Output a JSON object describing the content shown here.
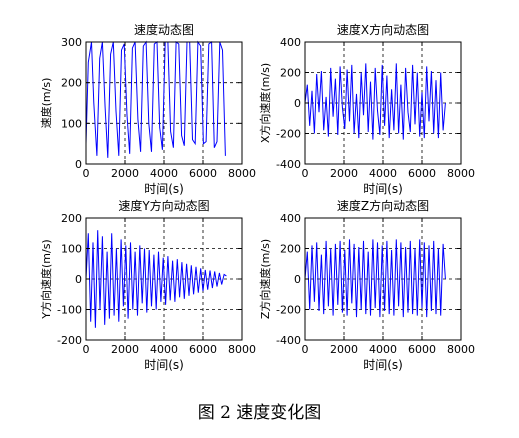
{
  "caption": "图 2  速度变化图",
  "colors": {
    "line": "#0000ff",
    "axis": "#000000",
    "grid": "#000000",
    "background": "#ffffff"
  },
  "chart_data": [
    {
      "type": "line",
      "title": "速度动态图",
      "xlabel": "时间(s)",
      "ylabel": "速度(m/s)",
      "xlim": [
        0,
        8000
      ],
      "ylim": [
        0,
        300
      ],
      "xticks": [
        0,
        2000,
        4000,
        6000,
        8000
      ],
      "yticks": [
        0,
        100,
        200,
        300
      ],
      "grid": true,
      "series": [
        {
          "x": [
            0,
            120,
            280,
            400,
            560,
            700,
            840,
            980,
            1120,
            1260,
            1400,
            1540,
            1680,
            1820,
            1960,
            2100,
            2240,
            2380,
            2520,
            2660,
            2800,
            2940,
            3080,
            3220,
            3360,
            3500,
            3640,
            3780,
            3920,
            4060,
            4200,
            4340,
            4480,
            4620,
            4760,
            4900,
            5040,
            5180,
            5320,
            5460,
            5600,
            5740,
            5880,
            6020,
            6160,
            6300,
            6440,
            6580,
            6720,
            6860,
            7000,
            7150
          ],
          "y": [
            50,
            250,
            300,
            150,
            20,
            260,
            300,
            140,
            15,
            270,
            300,
            130,
            20,
            280,
            295,
            120,
            25,
            285,
            300,
            110,
            30,
            290,
            300,
            100,
            30,
            295,
            300,
            90,
            35,
            300,
            300,
            80,
            40,
            300,
            295,
            70,
            45,
            300,
            300,
            60,
            50,
            300,
            290,
            50,
            55,
            295,
            300,
            40,
            55,
            300,
            280,
            20
          ]
        }
      ]
    },
    {
      "type": "line",
      "title": "速度X方向动态图",
      "xlabel": "时间(s)",
      "ylabel": "X方向速度(m/s)",
      "xlim": [
        0,
        8000
      ],
      "ylim": [
        -400,
        400
      ],
      "xticks": [
        0,
        2000,
        4000,
        6000,
        8000
      ],
      "yticks": [
        -400,
        -200,
        0,
        200,
        400
      ],
      "grid": true,
      "series": [
        {
          "x": [
            0,
            120,
            240,
            360,
            480,
            600,
            720,
            840,
            960,
            1080,
            1200,
            1320,
            1440,
            1560,
            1680,
            1800,
            1920,
            2040,
            2160,
            2280,
            2400,
            2520,
            2640,
            2760,
            2880,
            3000,
            3120,
            3240,
            3360,
            3480,
            3600,
            3720,
            3840,
            3960,
            4080,
            4200,
            4320,
            4440,
            4560,
            4680,
            4800,
            4920,
            5040,
            5160,
            5280,
            5400,
            5520,
            5640,
            5760,
            5880,
            6000,
            6120,
            6240,
            6360,
            6480,
            6600,
            6720,
            6840,
            6960,
            7080,
            7200
          ],
          "y": [
            0,
            120,
            -150,
            80,
            -200,
            190,
            -60,
            210,
            -180,
            40,
            -220,
            230,
            -90,
            160,
            -210,
            240,
            -30,
            -170,
            220,
            -120,
            250,
            -200,
            60,
            -230,
            200,
            -80,
            260,
            -190,
            140,
            -240,
            230,
            -50,
            -210,
            250,
            -150,
            180,
            -230,
            90,
            -180,
            260,
            -200,
            120,
            -240,
            230,
            -60,
            -190,
            250,
            -140,
            200,
            -220,
            70,
            -230,
            240,
            -120,
            210,
            -200,
            150,
            -230,
            200,
            -180,
            0
          ]
        }
      ]
    },
    {
      "type": "line",
      "title": "速度Y方向动态图",
      "xlabel": "时间(s)",
      "ylabel": "Y方向速度(m/s)",
      "xlim": [
        0,
        8000
      ],
      "ylim": [
        -200,
        200
      ],
      "xticks": [
        0,
        2000,
        4000,
        6000,
        8000
      ],
      "yticks": [
        -200,
        -100,
        0,
        100,
        200
      ],
      "grid": true,
      "series": [
        {
          "x": [
            0,
            120,
            240,
            360,
            480,
            600,
            720,
            840,
            960,
            1080,
            1200,
            1320,
            1440,
            1560,
            1680,
            1800,
            1920,
            2040,
            2160,
            2280,
            2400,
            2520,
            2640,
            2760,
            2880,
            3000,
            3120,
            3240,
            3360,
            3480,
            3600,
            3720,
            3840,
            3960,
            4080,
            4200,
            4320,
            4440,
            4560,
            4680,
            4800,
            4920,
            5040,
            5160,
            5280,
            5400,
            5520,
            5640,
            5760,
            5880,
            6000,
            6120,
            6240,
            6360,
            6480,
            6600,
            6720,
            6840,
            6960,
            7080,
            7200
          ],
          "y": [
            0,
            150,
            -140,
            120,
            -160,
            160,
            -100,
            140,
            -150,
            90,
            -130,
            150,
            -120,
            100,
            -140,
            130,
            -90,
            110,
            -130,
            120,
            -100,
            90,
            -120,
            110,
            -80,
            100,
            -110,
            95,
            -90,
            80,
            -100,
            90,
            -75,
            70,
            -85,
            75,
            -70,
            60,
            -75,
            65,
            -60,
            55,
            -65,
            50,
            -55,
            45,
            -50,
            40,
            -45,
            35,
            -40,
            30,
            -35,
            28,
            -30,
            25,
            -25,
            20,
            -18,
            15,
            10
          ]
        }
      ]
    },
    {
      "type": "line",
      "title": "速度Z方向动态图",
      "xlabel": "时间(s)",
      "ylabel": "Z方向速度(m/s)",
      "xlim": [
        0,
        8000
      ],
      "ylim": [
        -400,
        400
      ],
      "xticks": [
        0,
        2000,
        4000,
        6000,
        8000
      ],
      "yticks": [
        -400,
        -200,
        0,
        200,
        400
      ],
      "grid": true,
      "series": [
        {
          "x": [
            0,
            120,
            240,
            360,
            480,
            600,
            720,
            840,
            960,
            1080,
            1200,
            1320,
            1440,
            1560,
            1680,
            1800,
            1920,
            2040,
            2160,
            2280,
            2400,
            2520,
            2640,
            2760,
            2880,
            3000,
            3120,
            3240,
            3360,
            3480,
            3600,
            3720,
            3840,
            3960,
            4080,
            4200,
            4320,
            4440,
            4560,
            4680,
            4800,
            4920,
            5040,
            5160,
            5280,
            5400,
            5520,
            5640,
            5760,
            5880,
            6000,
            6120,
            6240,
            6360,
            6480,
            6600,
            6720,
            6840,
            6960,
            7080,
            7200
          ],
          "y": [
            0,
            180,
            -200,
            220,
            -150,
            240,
            -210,
            160,
            -230,
            250,
            -180,
            200,
            -240,
            230,
            -170,
            250,
            -220,
            190,
            -240,
            260,
            -160,
            230,
            -250,
            210,
            -200,
            250,
            -230,
            180,
            -240,
            260,
            -190,
            240,
            -250,
            220,
            -210,
            250,
            -230,
            190,
            -240,
            260,
            -180,
            240,
            -250,
            210,
            -220,
            250,
            -230,
            200,
            -240,
            260,
            -190,
            240,
            -250,
            220,
            -210,
            250,
            -230,
            200,
            -240,
            230,
            0
          ]
        }
      ]
    }
  ]
}
